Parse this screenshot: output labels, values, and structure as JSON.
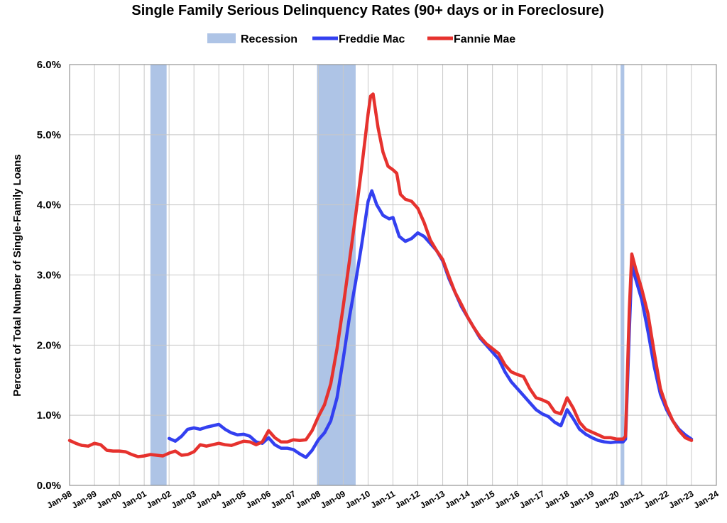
{
  "chart_data": {
    "type": "line",
    "title": "Single Family Serious Delinquency Rates (90+ days or in Foreclosure)",
    "ylabel": "Percent of Total Number of Single-Family Loans",
    "xlabel": "",
    "ylim": [
      0,
      6
    ],
    "yticks": [
      "0.0%",
      "1.0%",
      "2.0%",
      "3.0%",
      "4.0%",
      "5.0%",
      "6.0%"
    ],
    "xticks": [
      "Jan-98",
      "Jan-99",
      "Jan-00",
      "Jan-01",
      "Jan-02",
      "Jan-03",
      "Jan-04",
      "Jan-05",
      "Jan-06",
      "Jan-07",
      "Jan-08",
      "Jan-09",
      "Jan-10",
      "Jan-11",
      "Jan-12",
      "Jan-13",
      "Jan-14",
      "Jan-15",
      "Jan-16",
      "Jan-17",
      "Jan-18",
      "Jan-19",
      "Jan-20",
      "Jan-21",
      "Jan-22",
      "Jan-23",
      "Jan-24"
    ],
    "xlim": [
      1998.0,
      2024.0
    ],
    "grid": true,
    "legend": "top-center",
    "recessions": [
      {
        "start": 2001.25,
        "end": 2001.9
      },
      {
        "start": 2007.95,
        "end": 2009.5
      },
      {
        "start": 2020.15,
        "end": 2020.3
      }
    ],
    "series": [
      {
        "name": "Recession",
        "color": "#aec4e6",
        "kind": "band"
      },
      {
        "name": "Freddie Mac",
        "color": "#3340f0",
        "kind": "line",
        "points": [
          [
            2002.0,
            0.67
          ],
          [
            2002.25,
            0.63
          ],
          [
            2002.5,
            0.7
          ],
          [
            2002.75,
            0.8
          ],
          [
            2003.0,
            0.82
          ],
          [
            2003.25,
            0.8
          ],
          [
            2003.5,
            0.83
          ],
          [
            2003.75,
            0.85
          ],
          [
            2004.0,
            0.87
          ],
          [
            2004.25,
            0.8
          ],
          [
            2004.5,
            0.75
          ],
          [
            2004.75,
            0.72
          ],
          [
            2005.0,
            0.73
          ],
          [
            2005.25,
            0.7
          ],
          [
            2005.5,
            0.62
          ],
          [
            2005.75,
            0.6
          ],
          [
            2006.0,
            0.68
          ],
          [
            2006.25,
            0.58
          ],
          [
            2006.5,
            0.53
          ],
          [
            2006.75,
            0.53
          ],
          [
            2007.0,
            0.51
          ],
          [
            2007.25,
            0.45
          ],
          [
            2007.5,
            0.4
          ],
          [
            2007.75,
            0.5
          ],
          [
            2008.0,
            0.65
          ],
          [
            2008.25,
            0.75
          ],
          [
            2008.5,
            0.92
          ],
          [
            2008.75,
            1.25
          ],
          [
            2009.0,
            1.8
          ],
          [
            2009.25,
            2.4
          ],
          [
            2009.5,
            2.9
          ],
          [
            2009.75,
            3.45
          ],
          [
            2010.0,
            4.05
          ],
          [
            2010.15,
            4.2
          ],
          [
            2010.35,
            4.0
          ],
          [
            2010.6,
            3.85
          ],
          [
            2010.85,
            3.8
          ],
          [
            2011.0,
            3.82
          ],
          [
            2011.25,
            3.55
          ],
          [
            2011.5,
            3.48
          ],
          [
            2011.75,
            3.52
          ],
          [
            2012.0,
            3.6
          ],
          [
            2012.25,
            3.55
          ],
          [
            2012.5,
            3.45
          ],
          [
            2012.75,
            3.35
          ],
          [
            2013.0,
            3.2
          ],
          [
            2013.25,
            2.95
          ],
          [
            2013.5,
            2.75
          ],
          [
            2013.75,
            2.55
          ],
          [
            2014.0,
            2.4
          ],
          [
            2014.25,
            2.25
          ],
          [
            2014.5,
            2.1
          ],
          [
            2014.75,
            2.0
          ],
          [
            2015.0,
            1.9
          ],
          [
            2015.25,
            1.8
          ],
          [
            2015.5,
            1.62
          ],
          [
            2015.75,
            1.48
          ],
          [
            2016.0,
            1.38
          ],
          [
            2016.25,
            1.28
          ],
          [
            2016.5,
            1.18
          ],
          [
            2016.75,
            1.08
          ],
          [
            2017.0,
            1.02
          ],
          [
            2017.25,
            0.98
          ],
          [
            2017.5,
            0.9
          ],
          [
            2017.75,
            0.85
          ],
          [
            2018.0,
            1.08
          ],
          [
            2018.25,
            0.95
          ],
          [
            2018.5,
            0.8
          ],
          [
            2018.75,
            0.73
          ],
          [
            2019.0,
            0.68
          ],
          [
            2019.25,
            0.64
          ],
          [
            2019.5,
            0.62
          ],
          [
            2019.75,
            0.61
          ],
          [
            2020.0,
            0.62
          ],
          [
            2020.25,
            0.62
          ],
          [
            2020.35,
            0.66
          ],
          [
            2020.5,
            2.2
          ],
          [
            2020.6,
            3.15
          ],
          [
            2020.75,
            2.95
          ],
          [
            2021.0,
            2.65
          ],
          [
            2021.25,
            2.2
          ],
          [
            2021.5,
            1.7
          ],
          [
            2021.75,
            1.3
          ],
          [
            2022.0,
            1.08
          ],
          [
            2022.25,
            0.92
          ],
          [
            2022.5,
            0.8
          ],
          [
            2022.75,
            0.72
          ],
          [
            2023.0,
            0.66
          ]
        ]
      },
      {
        "name": "Fannie Mae",
        "color": "#e6322e",
        "kind": "line",
        "points": [
          [
            1998.0,
            0.64
          ],
          [
            1998.25,
            0.6
          ],
          [
            1998.5,
            0.57
          ],
          [
            1998.75,
            0.56
          ],
          [
            1999.0,
            0.6
          ],
          [
            1999.25,
            0.58
          ],
          [
            1999.5,
            0.5
          ],
          [
            1999.75,
            0.49
          ],
          [
            2000.0,
            0.49
          ],
          [
            2000.25,
            0.48
          ],
          [
            2000.5,
            0.44
          ],
          [
            2000.75,
            0.41
          ],
          [
            2001.0,
            0.42
          ],
          [
            2001.25,
            0.44
          ],
          [
            2001.5,
            0.43
          ],
          [
            2001.75,
            0.42
          ],
          [
            2002.0,
            0.46
          ],
          [
            2002.25,
            0.49
          ],
          [
            2002.5,
            0.43
          ],
          [
            2002.75,
            0.44
          ],
          [
            2003.0,
            0.48
          ],
          [
            2003.25,
            0.58
          ],
          [
            2003.5,
            0.56
          ],
          [
            2003.75,
            0.58
          ],
          [
            2004.0,
            0.6
          ],
          [
            2004.25,
            0.58
          ],
          [
            2004.5,
            0.57
          ],
          [
            2004.75,
            0.6
          ],
          [
            2005.0,
            0.63
          ],
          [
            2005.25,
            0.62
          ],
          [
            2005.5,
            0.58
          ],
          [
            2005.75,
            0.62
          ],
          [
            2006.0,
            0.78
          ],
          [
            2006.25,
            0.68
          ],
          [
            2006.5,
            0.62
          ],
          [
            2006.75,
            0.62
          ],
          [
            2007.0,
            0.65
          ],
          [
            2007.25,
            0.64
          ],
          [
            2007.5,
            0.65
          ],
          [
            2007.75,
            0.78
          ],
          [
            2008.0,
            0.98
          ],
          [
            2008.25,
            1.15
          ],
          [
            2008.5,
            1.45
          ],
          [
            2008.75,
            1.95
          ],
          [
            2009.0,
            2.55
          ],
          [
            2009.25,
            3.2
          ],
          [
            2009.5,
            3.85
          ],
          [
            2009.75,
            4.55
          ],
          [
            2010.0,
            5.3
          ],
          [
            2010.1,
            5.55
          ],
          [
            2010.2,
            5.58
          ],
          [
            2010.4,
            5.1
          ],
          [
            2010.6,
            4.75
          ],
          [
            2010.8,
            4.55
          ],
          [
            2011.0,
            4.5
          ],
          [
            2011.15,
            4.45
          ],
          [
            2011.3,
            4.15
          ],
          [
            2011.5,
            4.08
          ],
          [
            2011.75,
            4.05
          ],
          [
            2012.0,
            3.95
          ],
          [
            2012.25,
            3.75
          ],
          [
            2012.5,
            3.5
          ],
          [
            2012.75,
            3.35
          ],
          [
            2013.0,
            3.22
          ],
          [
            2013.25,
            2.98
          ],
          [
            2013.5,
            2.75
          ],
          [
            2013.75,
            2.58
          ],
          [
            2014.0,
            2.4
          ],
          [
            2014.25,
            2.25
          ],
          [
            2014.5,
            2.12
          ],
          [
            2014.75,
            2.02
          ],
          [
            2015.0,
            1.95
          ],
          [
            2015.25,
            1.88
          ],
          [
            2015.5,
            1.72
          ],
          [
            2015.75,
            1.62
          ],
          [
            2016.0,
            1.58
          ],
          [
            2016.25,
            1.55
          ],
          [
            2016.5,
            1.38
          ],
          [
            2016.75,
            1.25
          ],
          [
            2017.0,
            1.22
          ],
          [
            2017.25,
            1.18
          ],
          [
            2017.5,
            1.05
          ],
          [
            2017.75,
            1.02
          ],
          [
            2018.0,
            1.25
          ],
          [
            2018.25,
            1.1
          ],
          [
            2018.5,
            0.9
          ],
          [
            2018.75,
            0.8
          ],
          [
            2019.0,
            0.76
          ],
          [
            2019.25,
            0.72
          ],
          [
            2019.5,
            0.68
          ],
          [
            2019.75,
            0.68
          ],
          [
            2020.0,
            0.66
          ],
          [
            2020.25,
            0.66
          ],
          [
            2020.35,
            0.7
          ],
          [
            2020.5,
            2.5
          ],
          [
            2020.6,
            3.3
          ],
          [
            2020.75,
            3.1
          ],
          [
            2021.0,
            2.8
          ],
          [
            2021.25,
            2.45
          ],
          [
            2021.5,
            1.9
          ],
          [
            2021.75,
            1.38
          ],
          [
            2022.0,
            1.12
          ],
          [
            2022.25,
            0.92
          ],
          [
            2022.5,
            0.78
          ],
          [
            2022.75,
            0.68
          ],
          [
            2023.0,
            0.64
          ]
        ]
      }
    ]
  }
}
